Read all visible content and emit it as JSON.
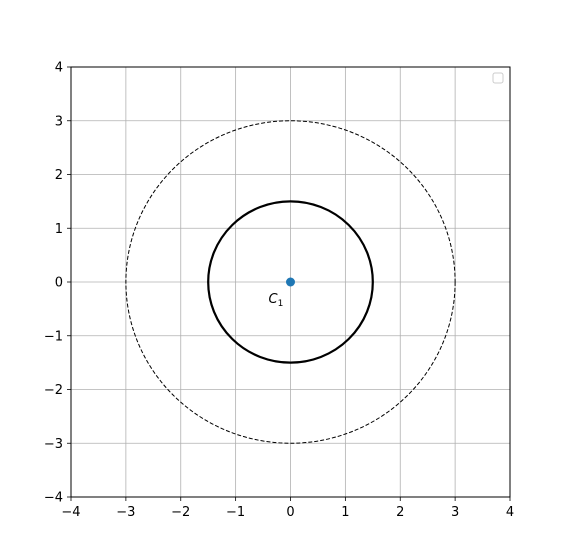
{
  "chart_data": {
    "type": "scatter",
    "title": "",
    "xlabel": "",
    "ylabel": "",
    "xlim": [
      -4,
      4
    ],
    "ylim": [
      -4,
      4
    ],
    "grid": true,
    "legend": {
      "location": "top-right",
      "entries": []
    },
    "x_ticks": [
      -4,
      -3,
      -2,
      -1,
      0,
      1,
      2,
      3,
      4
    ],
    "y_ticks": [
      -4,
      -3,
      -2,
      -1,
      0,
      1,
      2,
      3,
      4
    ],
    "x_tick_labels": [
      "−4",
      "−3",
      "−2",
      "−1",
      "0",
      "1",
      "2",
      "3",
      "4"
    ],
    "y_tick_labels": [
      "−4",
      "−3",
      "−2",
      "−1",
      "0",
      "1",
      "2",
      "3",
      "4"
    ],
    "points": [
      {
        "x": 0,
        "y": 0,
        "label": "C",
        "label_subscript": "1",
        "color": "#1f77b4"
      }
    ],
    "circles": [
      {
        "cx": 0,
        "cy": 0,
        "r": 1.5,
        "style": "solid",
        "color": "#000000"
      },
      {
        "cx": 0,
        "cy": 0,
        "r": 3,
        "style": "dashed",
        "color": "#000000"
      }
    ]
  },
  "colors": {
    "grid": "#b0b0b0",
    "axes": "#000000",
    "point": "#1f77b4"
  }
}
